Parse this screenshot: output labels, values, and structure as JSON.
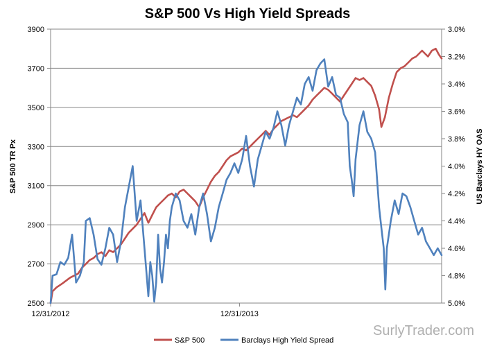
{
  "chart_data": {
    "type": "line",
    "title": "S&P 500 Vs High Yield Spreads",
    "x_tick_labels": [
      "12/31/2012",
      "12/31/2013"
    ],
    "y_left": {
      "label": "S&P 500 TR Px",
      "min": 2500,
      "max": 3900,
      "ticks": [
        "2500",
        "2700",
        "2900",
        "3100",
        "3300",
        "3500",
        "3700",
        "3900"
      ],
      "tick_values": [
        2500,
        2700,
        2900,
        3100,
        3300,
        3500,
        3700,
        3900
      ]
    },
    "y_right": {
      "label": "US Barclays  HY OAS",
      "min": 3.0,
      "max": 5.0,
      "inverted": true,
      "ticks": [
        "3.0%",
        "3.2%",
        "3.4%",
        "3.6%",
        "3.8%",
        "4.0%",
        "4.2%",
        "4.4%",
        "4.6%",
        "4.8%",
        "5.0%"
      ],
      "tick_values": [
        3.0,
        3.2,
        3.4,
        3.6,
        3.8,
        4.0,
        4.2,
        4.4,
        4.6,
        4.8,
        5.0
      ]
    },
    "grid": "horizontal",
    "legend_position": "bottom",
    "x_domain": [
      0,
      100
    ],
    "x_tick_positions": [
      0,
      48.3
    ],
    "series": [
      {
        "name": "S&P 500",
        "axis": "left",
        "color": "#c0504d",
        "points": [
          [
            0,
            2500
          ],
          [
            0.5,
            2560
          ],
          [
            1.5,
            2580
          ],
          [
            3,
            2600
          ],
          [
            5,
            2630
          ],
          [
            7,
            2650
          ],
          [
            8,
            2680
          ],
          [
            9,
            2700
          ],
          [
            10,
            2720
          ],
          [
            11,
            2730
          ],
          [
            12,
            2750
          ],
          [
            13,
            2760
          ],
          [
            14,
            2740
          ],
          [
            15,
            2770
          ],
          [
            16,
            2760
          ],
          [
            17,
            2780
          ],
          [
            18,
            2800
          ],
          [
            19,
            2830
          ],
          [
            20,
            2860
          ],
          [
            21,
            2880
          ],
          [
            22,
            2900
          ],
          [
            23,
            2930
          ],
          [
            24,
            2960
          ],
          [
            25,
            2910
          ],
          [
            26,
            2950
          ],
          [
            27,
            2990
          ],
          [
            28,
            3010
          ],
          [
            29,
            3030
          ],
          [
            30,
            3050
          ],
          [
            31,
            3060
          ],
          [
            32,
            3040
          ],
          [
            33,
            3070
          ],
          [
            34,
            3080
          ],
          [
            35,
            3060
          ],
          [
            36,
            3040
          ],
          [
            37,
            3020
          ],
          [
            38,
            2990
          ],
          [
            39,
            3040
          ],
          [
            40,
            3080
          ],
          [
            41,
            3120
          ],
          [
            42,
            3150
          ],
          [
            43,
            3170
          ],
          [
            44,
            3200
          ],
          [
            45,
            3230
          ],
          [
            46,
            3250
          ],
          [
            47,
            3260
          ],
          [
            48,
            3270
          ],
          [
            49,
            3290
          ],
          [
            50,
            3280
          ],
          [
            51,
            3300
          ],
          [
            52,
            3320
          ],
          [
            53,
            3340
          ],
          [
            54,
            3360
          ],
          [
            55,
            3380
          ],
          [
            56,
            3360
          ],
          [
            57,
            3390
          ],
          [
            58,
            3410
          ],
          [
            59,
            3430
          ],
          [
            60,
            3440
          ],
          [
            61,
            3450
          ],
          [
            62,
            3460
          ],
          [
            63,
            3450
          ],
          [
            64,
            3470
          ],
          [
            65,
            3490
          ],
          [
            66,
            3510
          ],
          [
            67,
            3540
          ],
          [
            68,
            3560
          ],
          [
            69,
            3580
          ],
          [
            70,
            3600
          ],
          [
            71,
            3590
          ],
          [
            72,
            3570
          ],
          [
            73,
            3550
          ],
          [
            74,
            3530
          ],
          [
            75,
            3560
          ],
          [
            76,
            3590
          ],
          [
            77,
            3620
          ],
          [
            78,
            3650
          ],
          [
            79,
            3640
          ],
          [
            80,
            3650
          ],
          [
            81,
            3630
          ],
          [
            82,
            3610
          ],
          [
            83,
            3560
          ],
          [
            84,
            3490
          ],
          [
            84.6,
            3400
          ],
          [
            85.5,
            3450
          ],
          [
            86.5,
            3550
          ],
          [
            87.5,
            3620
          ],
          [
            88.5,
            3680
          ],
          [
            89.5,
            3700
          ],
          [
            90.5,
            3710
          ],
          [
            91.5,
            3730
          ],
          [
            92.5,
            3750
          ],
          [
            93.5,
            3760
          ],
          [
            95,
            3790
          ],
          [
            96.5,
            3760
          ],
          [
            97.5,
            3790
          ],
          [
            98.5,
            3800
          ],
          [
            99.3,
            3770
          ],
          [
            100,
            3750
          ]
        ]
      },
      {
        "name": "Barclays High Yield Spread",
        "axis": "right",
        "color": "#4f81bd",
        "points": [
          [
            0,
            5.0
          ],
          [
            0.5,
            4.8
          ],
          [
            1.5,
            4.79
          ],
          [
            2.5,
            4.7
          ],
          [
            3.5,
            4.72
          ],
          [
            4.5,
            4.67
          ],
          [
            5.5,
            4.5
          ],
          [
            6.5,
            4.85
          ],
          [
            7.5,
            4.8
          ],
          [
            8.5,
            4.7
          ],
          [
            9,
            4.4
          ],
          [
            10,
            4.38
          ],
          [
            11,
            4.5
          ],
          [
            12,
            4.68
          ],
          [
            13,
            4.72
          ],
          [
            14,
            4.6
          ],
          [
            15,
            4.45
          ],
          [
            16,
            4.5
          ],
          [
            17,
            4.7
          ],
          [
            18,
            4.55
          ],
          [
            19,
            4.3
          ],
          [
            20,
            4.15
          ],
          [
            21,
            4.0
          ],
          [
            22,
            4.4
          ],
          [
            23,
            4.25
          ],
          [
            24,
            4.6
          ],
          [
            25,
            4.95
          ],
          [
            25.5,
            4.7
          ],
          [
            26,
            4.8
          ],
          [
            26.5,
            4.99
          ],
          [
            27,
            4.85
          ],
          [
            27.5,
            4.5
          ],
          [
            28,
            4.75
          ],
          [
            28.5,
            4.85
          ],
          [
            29,
            4.7
          ],
          [
            29.5,
            4.5
          ],
          [
            30,
            4.6
          ],
          [
            30.5,
            4.4
          ],
          [
            31,
            4.3
          ],
          [
            32,
            4.2
          ],
          [
            33,
            4.25
          ],
          [
            34,
            4.4
          ],
          [
            35,
            4.45
          ],
          [
            36,
            4.35
          ],
          [
            37,
            4.5
          ],
          [
            38,
            4.3
          ],
          [
            39,
            4.2
          ],
          [
            40,
            4.35
          ],
          [
            41,
            4.55
          ],
          [
            42,
            4.45
          ],
          [
            43,
            4.3
          ],
          [
            44,
            4.2
          ],
          [
            45,
            4.1
          ],
          [
            46,
            4.05
          ],
          [
            47,
            3.98
          ],
          [
            48,
            4.05
          ],
          [
            49,
            3.95
          ],
          [
            50,
            3.78
          ],
          [
            51,
            4.0
          ],
          [
            52,
            4.15
          ],
          [
            53,
            3.95
          ],
          [
            54,
            3.85
          ],
          [
            55,
            3.75
          ],
          [
            56,
            3.8
          ],
          [
            57,
            3.72
          ],
          [
            58,
            3.6
          ],
          [
            59,
            3.7
          ],
          [
            60,
            3.85
          ],
          [
            61,
            3.7
          ],
          [
            62,
            3.6
          ],
          [
            63,
            3.5
          ],
          [
            64,
            3.55
          ],
          [
            65,
            3.4
          ],
          [
            66,
            3.35
          ],
          [
            67,
            3.45
          ],
          [
            68,
            3.3
          ],
          [
            69,
            3.25
          ],
          [
            70,
            3.22
          ],
          [
            71,
            3.42
          ],
          [
            72,
            3.35
          ],
          [
            73,
            3.48
          ],
          [
            74,
            3.5
          ],
          [
            75,
            3.62
          ],
          [
            76,
            3.68
          ],
          [
            76.5,
            4.0
          ],
          [
            77,
            4.1
          ],
          [
            77.5,
            4.22
          ],
          [
            78,
            3.95
          ],
          [
            79,
            3.7
          ],
          [
            80,
            3.6
          ],
          [
            81,
            3.75
          ],
          [
            82,
            3.8
          ],
          [
            83,
            3.9
          ],
          [
            84,
            4.3
          ],
          [
            84.6,
            4.45
          ],
          [
            85.2,
            4.6
          ],
          [
            85.6,
            4.9
          ],
          [
            86,
            4.6
          ],
          [
            87,
            4.4
          ],
          [
            88,
            4.25
          ],
          [
            89,
            4.35
          ],
          [
            90,
            4.2
          ],
          [
            91,
            4.22
          ],
          [
            92,
            4.3
          ],
          [
            93,
            4.4
          ],
          [
            94,
            4.5
          ],
          [
            95,
            4.45
          ],
          [
            96,
            4.55
          ],
          [
            97,
            4.6
          ],
          [
            98,
            4.65
          ],
          [
            99,
            4.6
          ],
          [
            100,
            4.65
          ]
        ]
      }
    ]
  },
  "watermark": "SurlyTrader.com"
}
